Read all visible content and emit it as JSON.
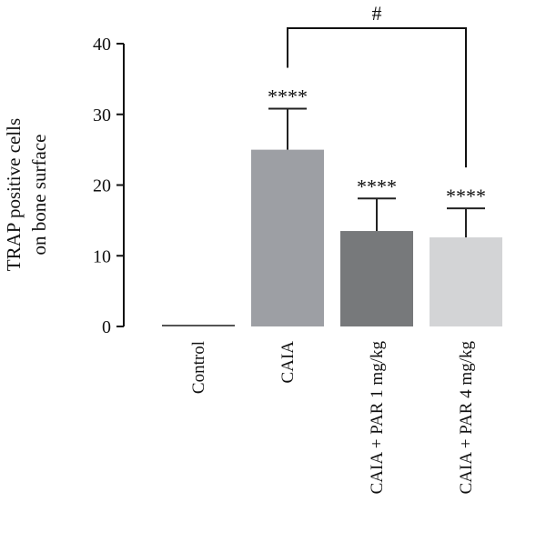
{
  "chart_data": {
    "type": "bar",
    "title": "",
    "ylabel_lines": [
      "TRAP positive cells",
      "on bone surface"
    ],
    "xlabel": "",
    "ylim": [
      0,
      40
    ],
    "yticks": [
      0,
      10,
      20,
      30,
      40
    ],
    "categories": [
      "Control",
      "CAIA",
      "CAIA + PAR 1 mg/kg",
      "CAIA + PAR 4 mg/kg"
    ],
    "values": [
      0.2,
      25.0,
      13.5,
      12.6
    ],
    "errors": [
      0.0,
      5.8,
      4.6,
      4.1
    ],
    "bar_colors": [
      "#9b9ea3",
      "#9d9fa4",
      "#77797b",
      "#d3d4d6"
    ],
    "significance": [
      "",
      "****",
      "****",
      "****"
    ],
    "bracket": {
      "from": 1,
      "to": 3,
      "label": "#"
    }
  }
}
